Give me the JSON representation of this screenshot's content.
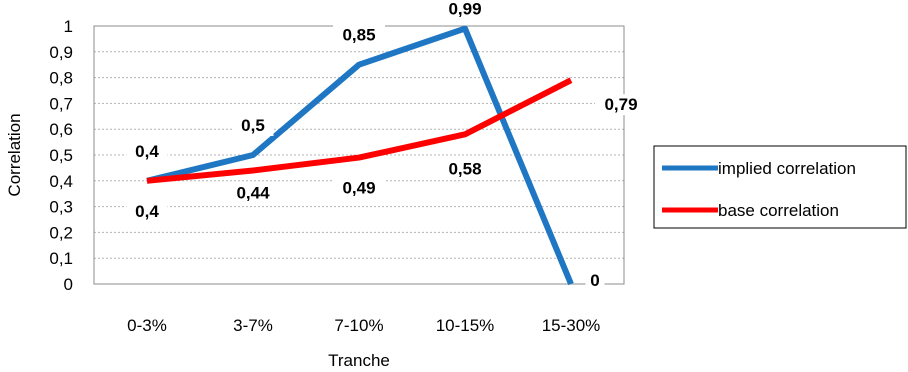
{
  "chart_data": {
    "type": "line",
    "categories": [
      "0-3%",
      "3-7%",
      "7-10%",
      "10-15%",
      "15-30%"
    ],
    "xlabel": "Tranche",
    "ylabel": "Correlation",
    "ylim": [
      0,
      1
    ],
    "yticks": [
      "0",
      "0,1",
      "0,2",
      "0,3",
      "0,4",
      "0,5",
      "0,6",
      "0,7",
      "0,8",
      "0,9",
      "1"
    ],
    "grid": true,
    "legend_position": "right",
    "series": [
      {
        "name": "implied correlation",
        "color": "#1F77C4",
        "values": [
          0.4,
          0.5,
          0.85,
          0.99,
          0
        ],
        "labels": [
          "0,4",
          "0,5",
          "0,85",
          "0,99",
          "0"
        ]
      },
      {
        "name": "base correlation",
        "color": "#FF0000",
        "values": [
          0.4,
          0.44,
          0.49,
          0.58,
          0.79
        ],
        "labels": [
          "0,4",
          "0,44",
          "0,49",
          "0,58",
          "0,79"
        ]
      }
    ]
  }
}
